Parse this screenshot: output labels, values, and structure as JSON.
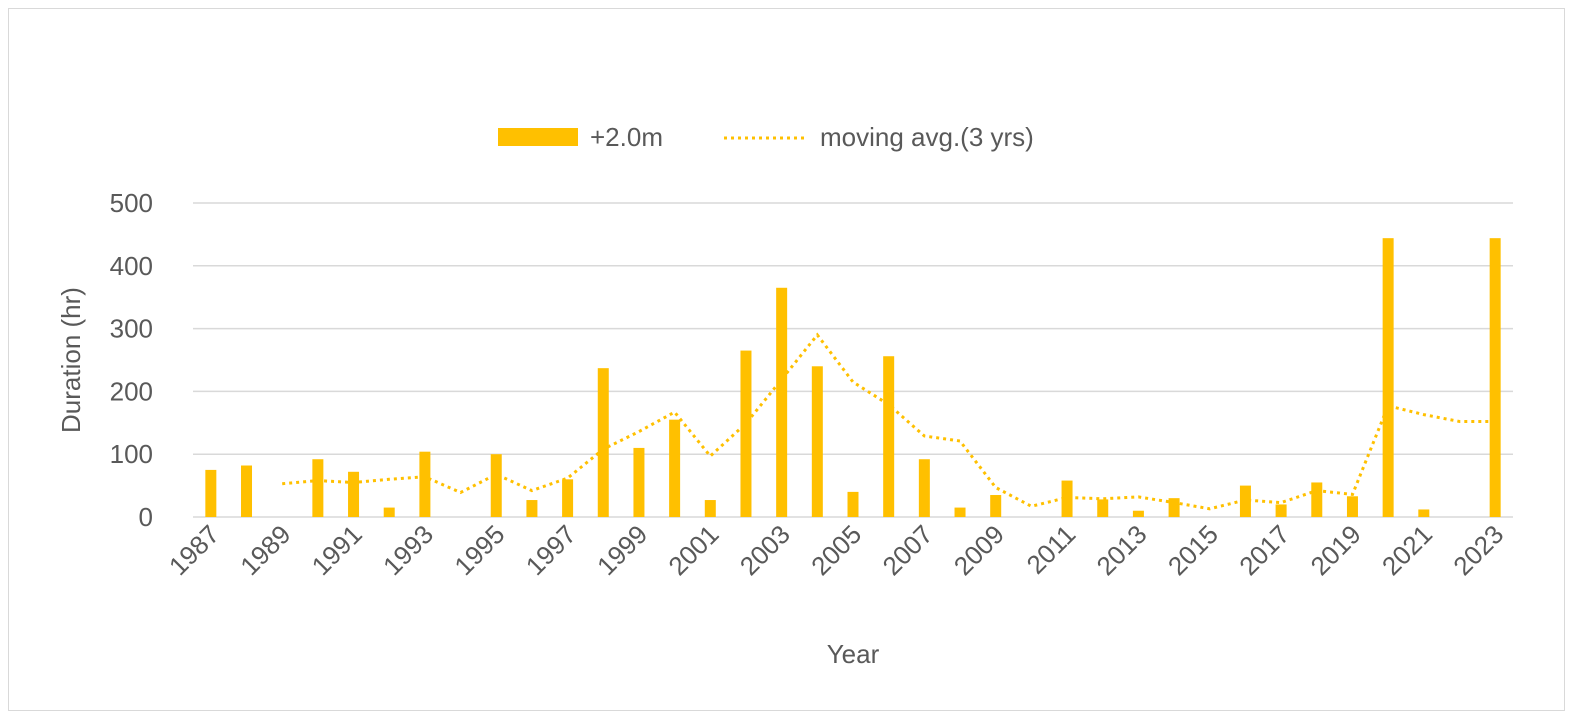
{
  "chart_data": {
    "type": "bar",
    "title": "",
    "xlabel": "Year",
    "ylabel": "Duration (hr)",
    "ylim": [
      0,
      500
    ],
    "yticks": [
      0,
      100,
      200,
      300,
      400,
      500
    ],
    "grid": "horizontal",
    "legend_position": "top",
    "x": [
      1987,
      1988,
      1989,
      1990,
      1991,
      1992,
      1993,
      1994,
      1995,
      1996,
      1997,
      1998,
      1999,
      2000,
      2001,
      2002,
      2003,
      2004,
      2005,
      2006,
      2007,
      2008,
      2009,
      2010,
      2011,
      2012,
      2013,
      2014,
      2015,
      2016,
      2017,
      2018,
      2019,
      2020,
      2021,
      2022,
      2023
    ],
    "x_tick_labels": [
      "1987",
      "1989",
      "1991",
      "1993",
      "1995",
      "1997",
      "1999",
      "2001",
      "2003",
      "2005",
      "2007",
      "2009",
      "2011",
      "2013",
      "2015",
      "2017",
      "2019",
      "2021",
      "2023"
    ],
    "series": [
      {
        "name": "+2.0m",
        "kind": "bar",
        "color": "#ffc000",
        "values": [
          75,
          82,
          0,
          92,
          72,
          15,
          104,
          0,
          100,
          27,
          60,
          237,
          110,
          155,
          27,
          265,
          365,
          240,
          40,
          256,
          92,
          15,
          35,
          0,
          58,
          28,
          10,
          30,
          0,
          50,
          20,
          55,
          33,
          444,
          12,
          0,
          444
        ]
      },
      {
        "name": "moving avg.(3 yrs)",
        "kind": "line",
        "style": "dotted",
        "color": "#ffc000",
        "values": [
          null,
          null,
          53,
          58,
          55,
          60,
          64,
          39,
          68,
          42,
          62,
          108,
          136,
          167,
          97,
          149,
          219,
          290,
          215,
          179,
          129,
          121,
          47,
          17,
          31,
          29,
          32,
          23,
          13,
          27,
          23,
          42,
          36,
          177,
          163,
          152,
          152
        ]
      }
    ]
  }
}
